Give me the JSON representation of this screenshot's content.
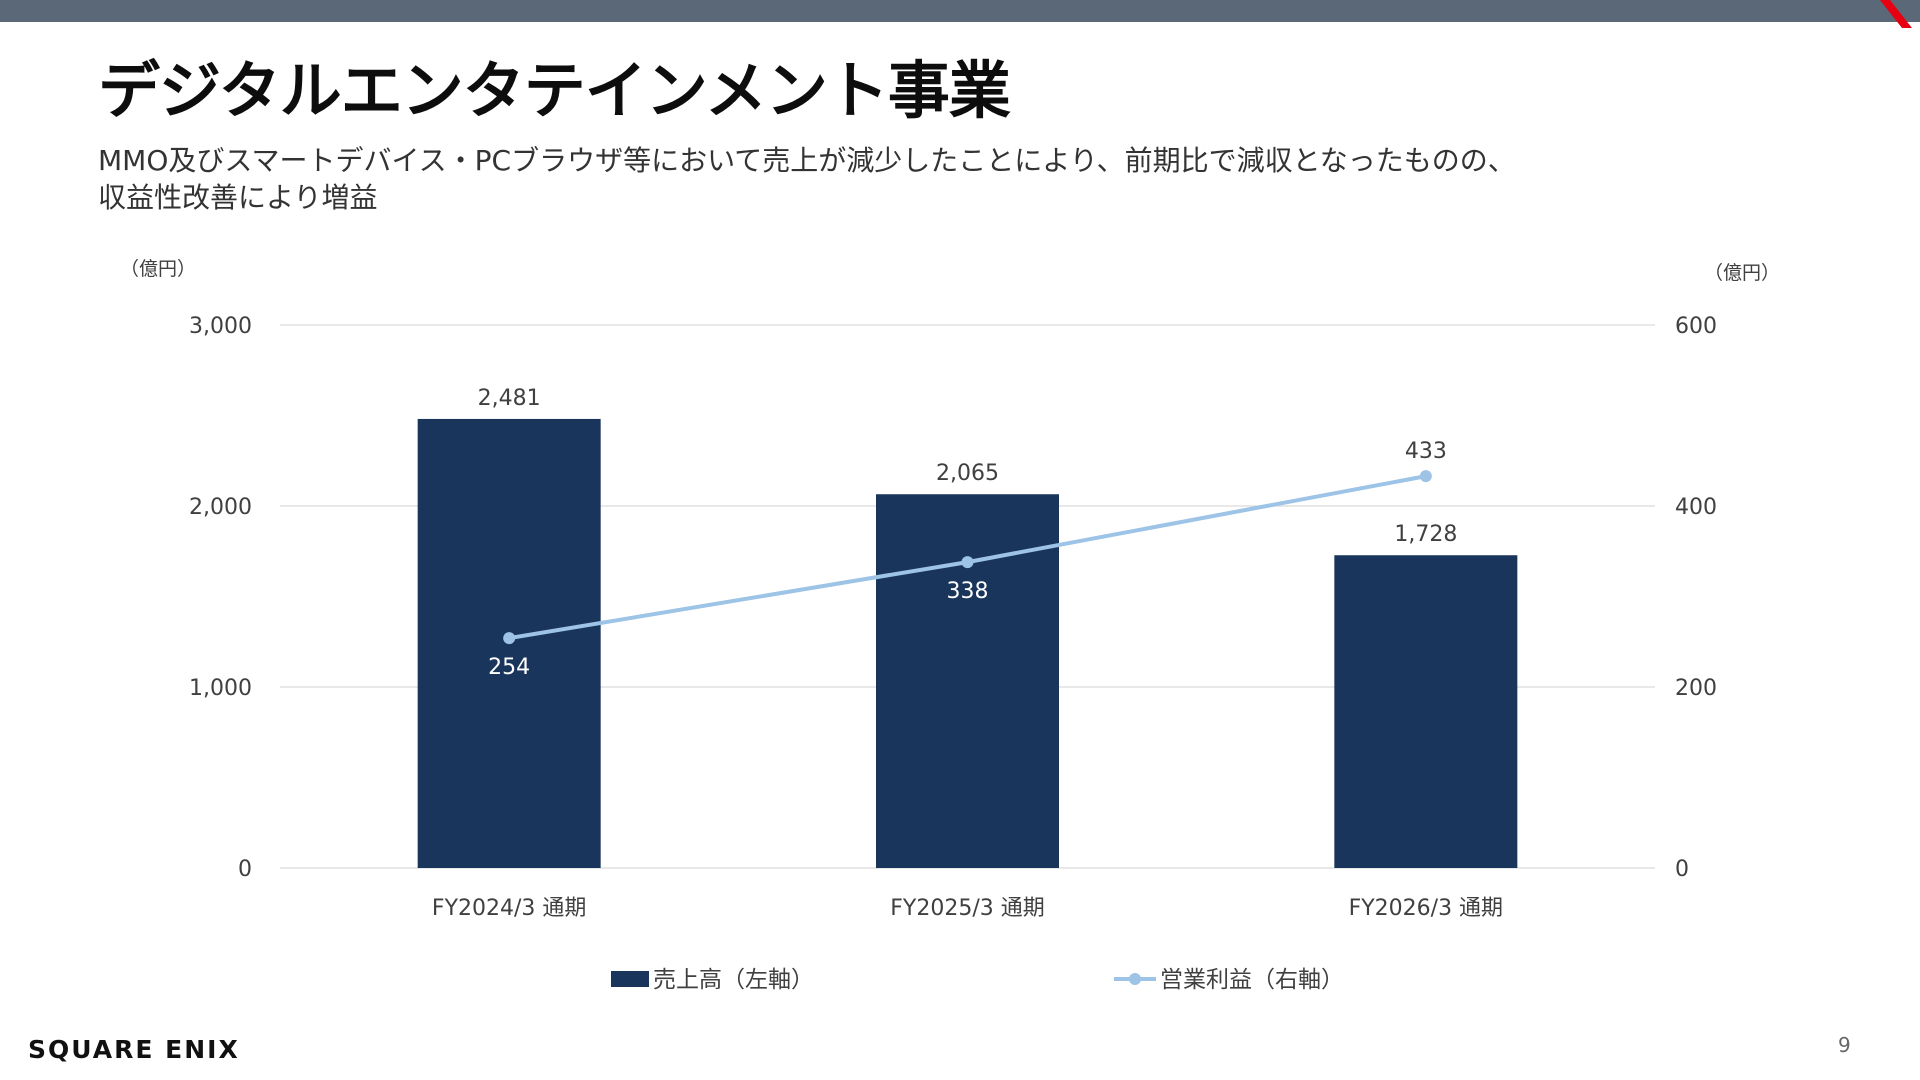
{
  "page": {
    "title": "デジタルエンタテインメント事業",
    "subtitle_line1": "MMO及びスマートデバイス・PCブラウザ等において売上が減少したことにより、前期比で減収となったものの、",
    "subtitle_line2": "収益性改善により増益",
    "page_number": "9",
    "logo_text": "SQUARE ENIX"
  },
  "colors": {
    "top_bar": "#5b6877",
    "accent_red": "#e60012",
    "bar": "#1a355b",
    "line": "#9dc3e6",
    "grid": "#d9d9d9"
  },
  "chart_data": {
    "type": "bar",
    "categories": [
      "FY2024/3 通期",
      "FY2025/3 通期",
      "FY2026/3 通期"
    ],
    "series": [
      {
        "name": "売上高（左軸）",
        "type": "bar",
        "axis": "left",
        "values": [
          2481,
          2065,
          1728
        ],
        "labels": [
          "2,481",
          "2,065",
          "1,728"
        ]
      },
      {
        "name": "営業利益（右軸）",
        "type": "line",
        "axis": "right",
        "values": [
          254,
          338,
          433
        ],
        "labels": [
          "254",
          "338",
          "433"
        ]
      }
    ],
    "y_left": {
      "unit": "（億円）",
      "ylim": [
        0,
        3000
      ],
      "ticks": [
        0,
        1000,
        2000,
        3000
      ],
      "tick_labels": [
        "0",
        "1,000",
        "2,000",
        "3,000"
      ]
    },
    "y_right": {
      "unit": "（億円）",
      "ylim": [
        0,
        600
      ],
      "ticks": [
        0,
        200,
        400,
        600
      ],
      "tick_labels": [
        "0",
        "200",
        "400",
        "600"
      ]
    },
    "grid": true,
    "legend_position": "bottom"
  }
}
